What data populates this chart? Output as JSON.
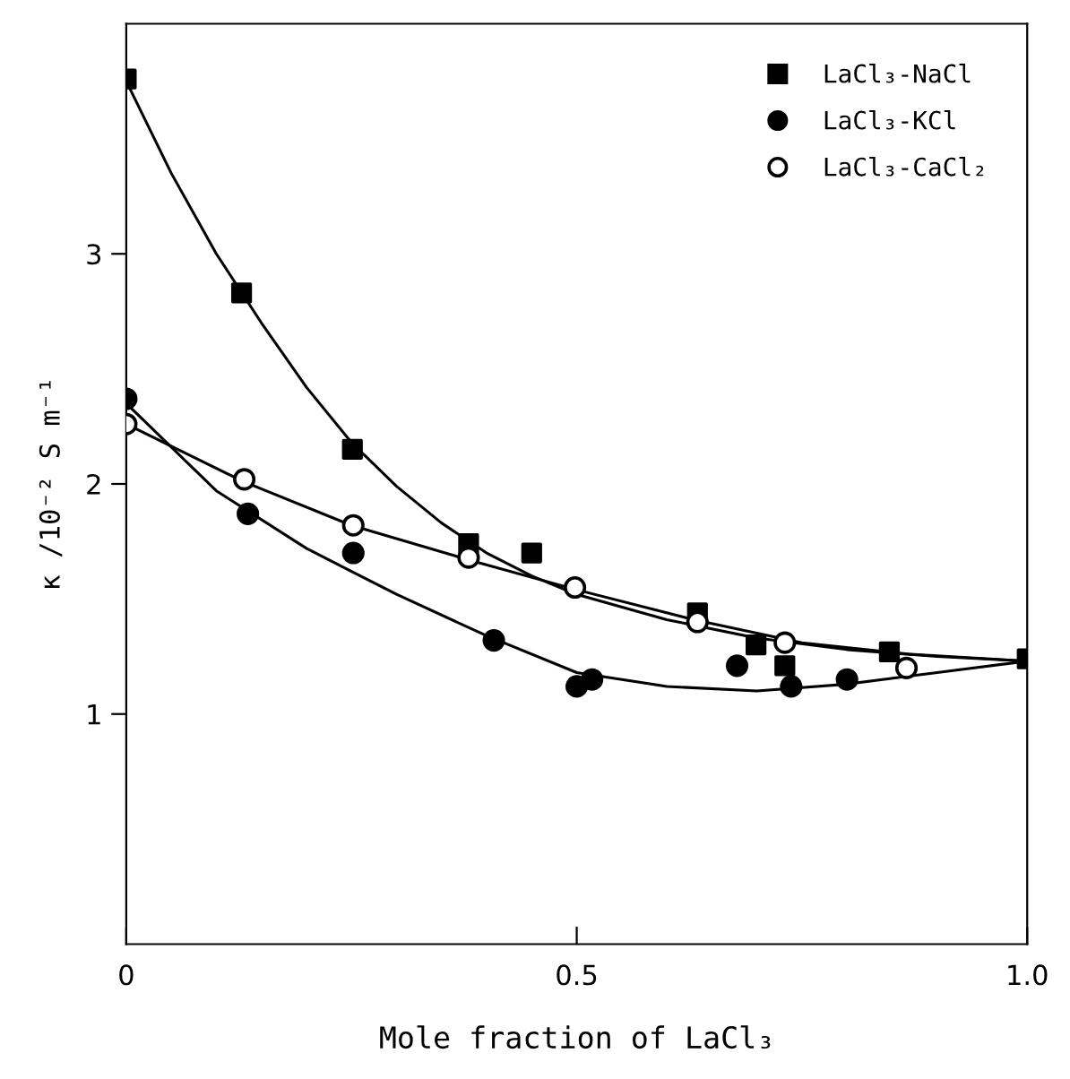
{
  "chart_data": {
    "type": "scatter",
    "xlabel": "Mole fraction of LaCl₃",
    "ylabel": "κ /10⁻² S m⁻¹",
    "xlim": [
      0,
      1
    ],
    "ylim": [
      0,
      4
    ],
    "xticks": [
      0,
      0.5,
      {
        "value": 1,
        "label": "1.0"
      }
    ],
    "yticks": [
      1,
      2,
      3
    ],
    "grid": false,
    "legend": "top right",
    "series": [
      {
        "name": "LaCl₃-NaCl",
        "color": "#000000",
        "marker": "square",
        "x": [
          0,
          0.128,
          0.251,
          0.38,
          0.45,
          0.634,
          0.699,
          0.731,
          0.847,
          1.0
        ],
        "values": [
          3.76,
          2.83,
          2.15,
          1.74,
          1.7,
          1.44,
          1.3,
          1.21,
          1.27,
          1.24
        ]
      },
      {
        "name": "LaCl₃-KCl",
        "color": "#000000",
        "marker": "circle",
        "x": [
          0,
          0.135,
          0.252,
          0.408,
          0.5,
          0.517,
          0.678,
          0.738,
          0.8
        ],
        "values": [
          2.37,
          1.87,
          1.7,
          1.32,
          1.12,
          1.15,
          1.21,
          1.12,
          1.15
        ]
      },
      {
        "name": "LaCl₃-CaCl₂",
        "color": "#ffffff",
        "marker": "circle",
        "x": [
          0,
          0.131,
          0.252,
          0.38,
          0.498,
          0.634,
          0.731,
          0.866
        ],
        "values": [
          2.26,
          2.02,
          1.82,
          1.68,
          1.55,
          1.4,
          1.31,
          1.2
        ]
      },
      {
        "type": "line",
        "color": "#000000",
        "marker": "none",
        "x": [
          0,
          0.05,
          0.1,
          0.15,
          0.2,
          0.25,
          0.3,
          0.35,
          0.4,
          0.45,
          0.5,
          0.6,
          0.7,
          0.8,
          0.9,
          1.0
        ],
        "values": [
          3.75,
          3.35,
          3.0,
          2.7,
          2.42,
          2.18,
          1.99,
          1.83,
          1.7,
          1.6,
          1.52,
          1.41,
          1.33,
          1.28,
          1.25,
          1.23
        ]
      },
      {
        "type": "line",
        "color": "#000000",
        "marker": "none",
        "x": [
          0,
          0.1,
          0.2,
          0.25,
          0.3,
          0.4,
          0.5,
          0.6,
          0.7,
          0.8,
          0.9,
          1.0
        ],
        "values": [
          2.35,
          1.97,
          1.72,
          1.62,
          1.52,
          1.34,
          1.18,
          1.12,
          1.1,
          1.13,
          1.18,
          1.23
        ]
      },
      {
        "type": "line",
        "color": "#000000",
        "marker": "none",
        "x": [
          0,
          0.13,
          0.25,
          0.38,
          0.5,
          0.63,
          0.75,
          0.87,
          1.0
        ],
        "values": [
          2.26,
          2.01,
          1.82,
          1.67,
          1.54,
          1.41,
          1.31,
          1.26,
          1.23
        ]
      }
    ]
  }
}
